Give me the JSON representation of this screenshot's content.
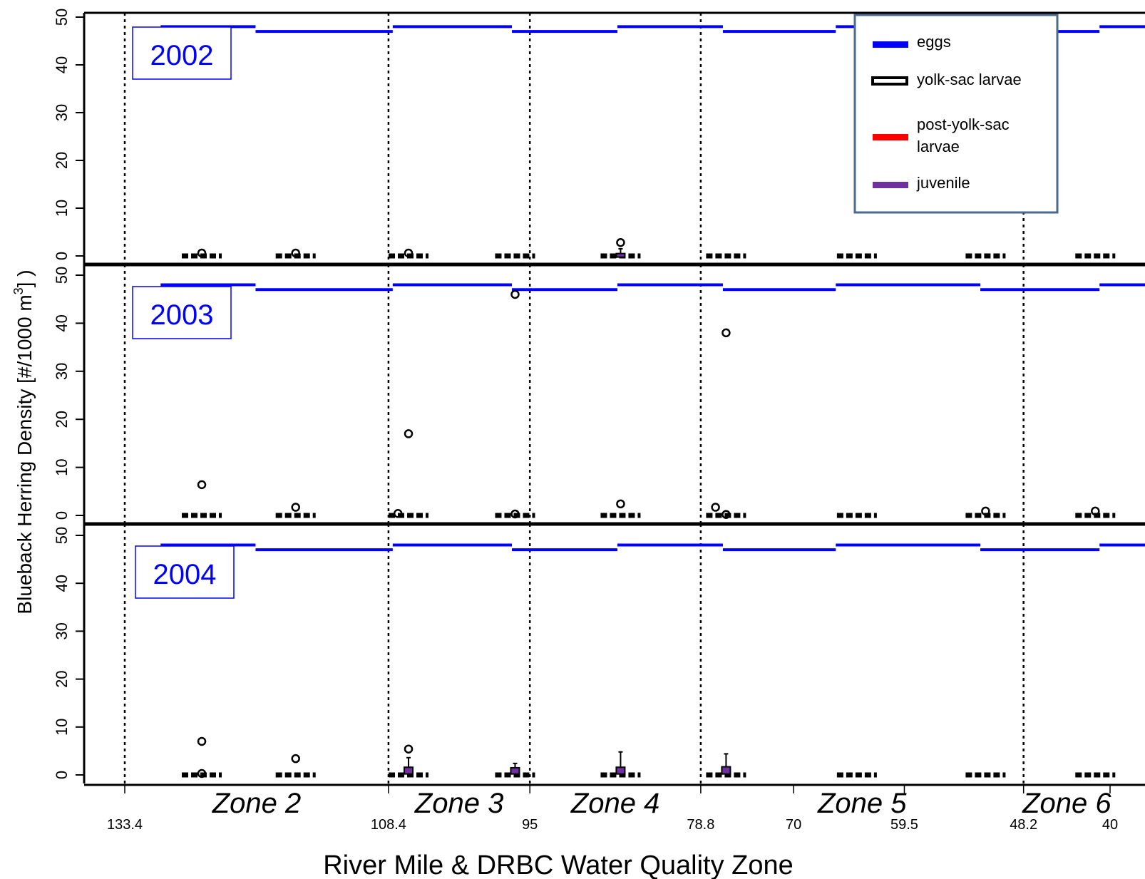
{
  "chart_data": {
    "type": "boxplot",
    "ylabel": "Blueback Herring Density [#/1000 m",
    "ylabel_sup": "3",
    "ylabel_tail": "] )",
    "xlabel": "River Mile & DRBC Water Quality Zone",
    "ylim": [
      0,
      50
    ],
    "yticks": [
      0,
      10,
      20,
      30,
      40,
      50
    ],
    "river_miles": [
      "133.4",
      "108.4",
      "95",
      "78.8",
      "70",
      "59.5",
      "48.2",
      "40"
    ],
    "river_mile_values": [
      133.4,
      108.4,
      95,
      78.8,
      70,
      59.5,
      48.2,
      40
    ],
    "zone_boundaries": [
      133.4,
      108.4,
      95,
      78.8,
      48.2
    ],
    "zones": [
      {
        "label": "Zone 2",
        "center": 120.9
      },
      {
        "label": "Zone 3",
        "center": 101.7
      },
      {
        "label": "Zone 4",
        "center": 86.9
      },
      {
        "label": "Zone 5",
        "center": 63.5
      },
      {
        "label": "Zone 6",
        "center": 44.1
      }
    ],
    "legend": {
      "position": "top-right",
      "entries": [
        {
          "label": "eggs",
          "color": "#0000ff",
          "style": "bar"
        },
        {
          "label": "yolk-sac larvae",
          "color": "#000000",
          "style": "box"
        },
        {
          "label": "post-yolk-sac larvae",
          "color": "#ff0000",
          "style": "bar"
        },
        {
          "label": "juvenile",
          "color": "#7030a0",
          "style": "bar"
        }
      ]
    },
    "series_colors": {
      "eggs": "#0000ff",
      "yolk_sac": "#000000",
      "post_yolk_sac": "#ff0000",
      "juvenile": "#7030a0"
    },
    "sampling_locations": [
      126.1,
      117.2,
      106.5,
      96.4,
      86.4,
      76.4,
      64.0,
      51.8,
      41.4
    ],
    "egg_segments": [
      {
        "from": 130.0,
        "to": 121.0
      },
      {
        "from": 121.0,
        "to": 108.0
      },
      {
        "from": 108.0,
        "to": 96.7
      },
      {
        "from": 96.7,
        "to": 86.7
      },
      {
        "from": 86.7,
        "to": 76.7
      },
      {
        "from": 76.7,
        "to": 66.0
      },
      {
        "from": 66.0,
        "to": 52.3
      },
      {
        "from": 52.3,
        "to": 41.0
      },
      {
        "from": 41.0,
        "to": 31.0
      }
    ],
    "egg_levels": [
      48,
      47,
      48,
      47,
      48,
      47,
      48,
      47,
      48
    ],
    "panels": [
      {
        "year": "2002",
        "outliers": [
          {
            "x": 126.1,
            "y": 0.6
          },
          {
            "x": 117.2,
            "y": 0.6
          },
          {
            "x": 106.5,
            "y": 0.6
          },
          {
            "x": 86.4,
            "y": 2.8
          }
        ],
        "juvenile_boxes": [
          {
            "x": 86.4,
            "q1": 0,
            "q3": 0.5,
            "whisker": 1.5
          }
        ]
      },
      {
        "year": "2003",
        "outliers": [
          {
            "x": 126.1,
            "y": 6.4
          },
          {
            "x": 117.2,
            "y": 1.7
          },
          {
            "x": 106.5,
            "y": 17
          },
          {
            "x": 107.5,
            "y": 0.4
          },
          {
            "x": 96.4,
            "y": 46
          },
          {
            "x": 96.4,
            "y": 0.3
          },
          {
            "x": 86.4,
            "y": 2.4
          },
          {
            "x": 76.4,
            "y": 38
          },
          {
            "x": 77.4,
            "y": 1.7
          },
          {
            "x": 76.4,
            "y": 0.2
          },
          {
            "x": 51.8,
            "y": 0.9
          },
          {
            "x": 41.4,
            "y": 0.9
          }
        ],
        "juvenile_boxes": []
      },
      {
        "year": "2004",
        "outliers": [
          {
            "x": 126.1,
            "y": 7.0
          },
          {
            "x": 126.1,
            "y": 0.3
          },
          {
            "x": 117.2,
            "y": 3.4
          },
          {
            "x": 106.5,
            "y": 5.4
          }
        ],
        "juvenile_boxes": [
          {
            "x": 106.5,
            "q1": 0.2,
            "q3": 1.6,
            "whisker": 3.6
          },
          {
            "x": 96.4,
            "q1": 0.2,
            "q3": 1.5,
            "whisker": 2.4
          },
          {
            "x": 86.4,
            "q1": 0.2,
            "q3": 1.6,
            "whisker": 4.8
          },
          {
            "x": 76.4,
            "q1": 0.2,
            "q3": 1.7,
            "whisker": 4.4
          }
        ]
      }
    ]
  }
}
